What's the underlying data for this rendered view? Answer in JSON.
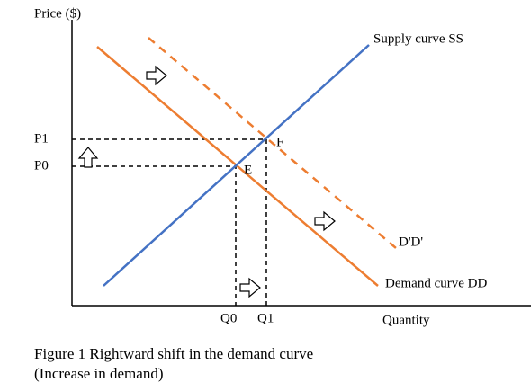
{
  "axes": {
    "y_label": "Price ($)",
    "x_label": "Quantity"
  },
  "price_levels": [
    "P1",
    "P0"
  ],
  "quantity_levels": [
    "Q0",
    "Q1"
  ],
  "points": [
    "E",
    "F"
  ],
  "curves": {
    "supply": "Supply curve SS",
    "demand": "Demand curve DD",
    "new_demand": "D'D'"
  },
  "caption": {
    "line1": "Figure 1 Rightward shift in the demand curve",
    "line2": "(Increase in demand)"
  }
}
